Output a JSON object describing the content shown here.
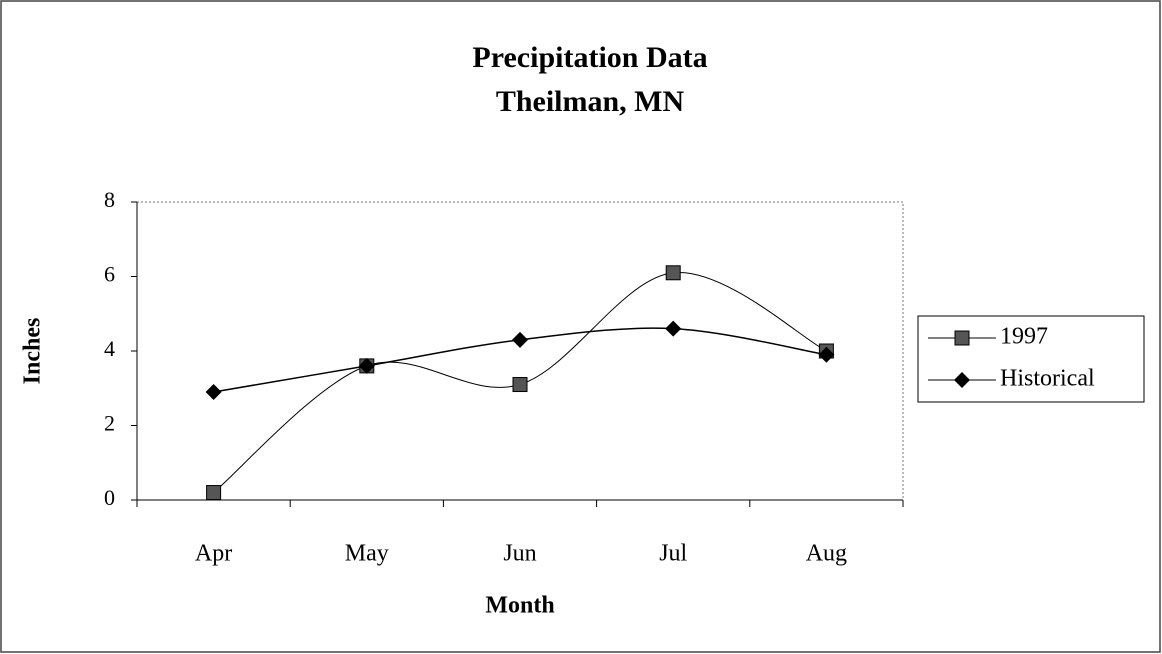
{
  "chart_data": {
    "type": "line",
    "title": "Precipitation Data",
    "subtitle": "Theilman, MN",
    "x_label": "Month",
    "y_label": "Inches",
    "categories": [
      "Apr",
      "May",
      "Jun",
      "Jul",
      "Aug"
    ],
    "series": [
      {
        "name": "1997",
        "color": "#000000",
        "marker": "square",
        "values": [
          0.2,
          3.6,
          3.1,
          6.1,
          4.0
        ]
      },
      {
        "name": "Historical",
        "color": "#000000",
        "marker": "diamond",
        "values": [
          2.9,
          3.6,
          4.3,
          4.6,
          3.9
        ]
      }
    ],
    "smooth": true,
    "ylim": [
      0,
      8
    ],
    "yticks": [
      0,
      2,
      4,
      6,
      8
    ],
    "grid": false,
    "legend": "right"
  }
}
